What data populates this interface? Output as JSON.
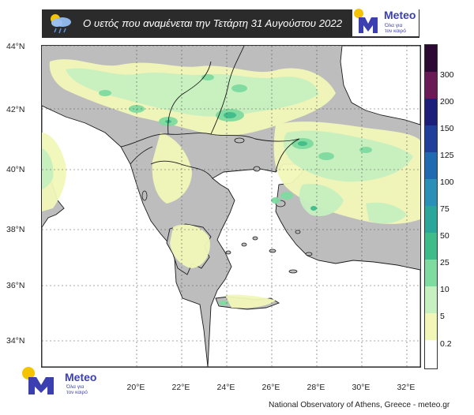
{
  "header": {
    "title": "Ο υετός που αναμένεται την Τετάρτη 31 Αυγούστου 2022",
    "icon": "cloud-rain-icon"
  },
  "logo": {
    "word": "Meteo",
    "tagline_line1": "Όλα για",
    "tagline_line2": "τον καιρό",
    "colors": {
      "blue": "#3b3fb0",
      "yellow": "#f5c400"
    }
  },
  "map": {
    "latitudes": [
      "44°N",
      "42°N",
      "40°N",
      "38°N",
      "36°N",
      "34°N"
    ],
    "longitudes": [
      "20°E",
      "22°E",
      "24°E",
      "26°E",
      "28°E",
      "30°E",
      "32°E"
    ],
    "land_color": "#bdbdbd",
    "sea_color": "#ffffff"
  },
  "legend": {
    "ticks": [
      "300",
      "200",
      "150",
      "125",
      "100",
      "75",
      "50",
      "25",
      "10",
      "5",
      "0.2"
    ],
    "colors": [
      "#2c0a33",
      "#6a1b55",
      "#1c1f7a",
      "#1f3f9a",
      "#1f6ab0",
      "#2a90b8",
      "#2aa79a",
      "#3ebd8a",
      "#7fdba0",
      "#c6f0c0",
      "#f2f7b8",
      "#ffffff"
    ]
  },
  "footer": {
    "credit": "National Observatory of Athens, Greece - meteo.gr"
  }
}
